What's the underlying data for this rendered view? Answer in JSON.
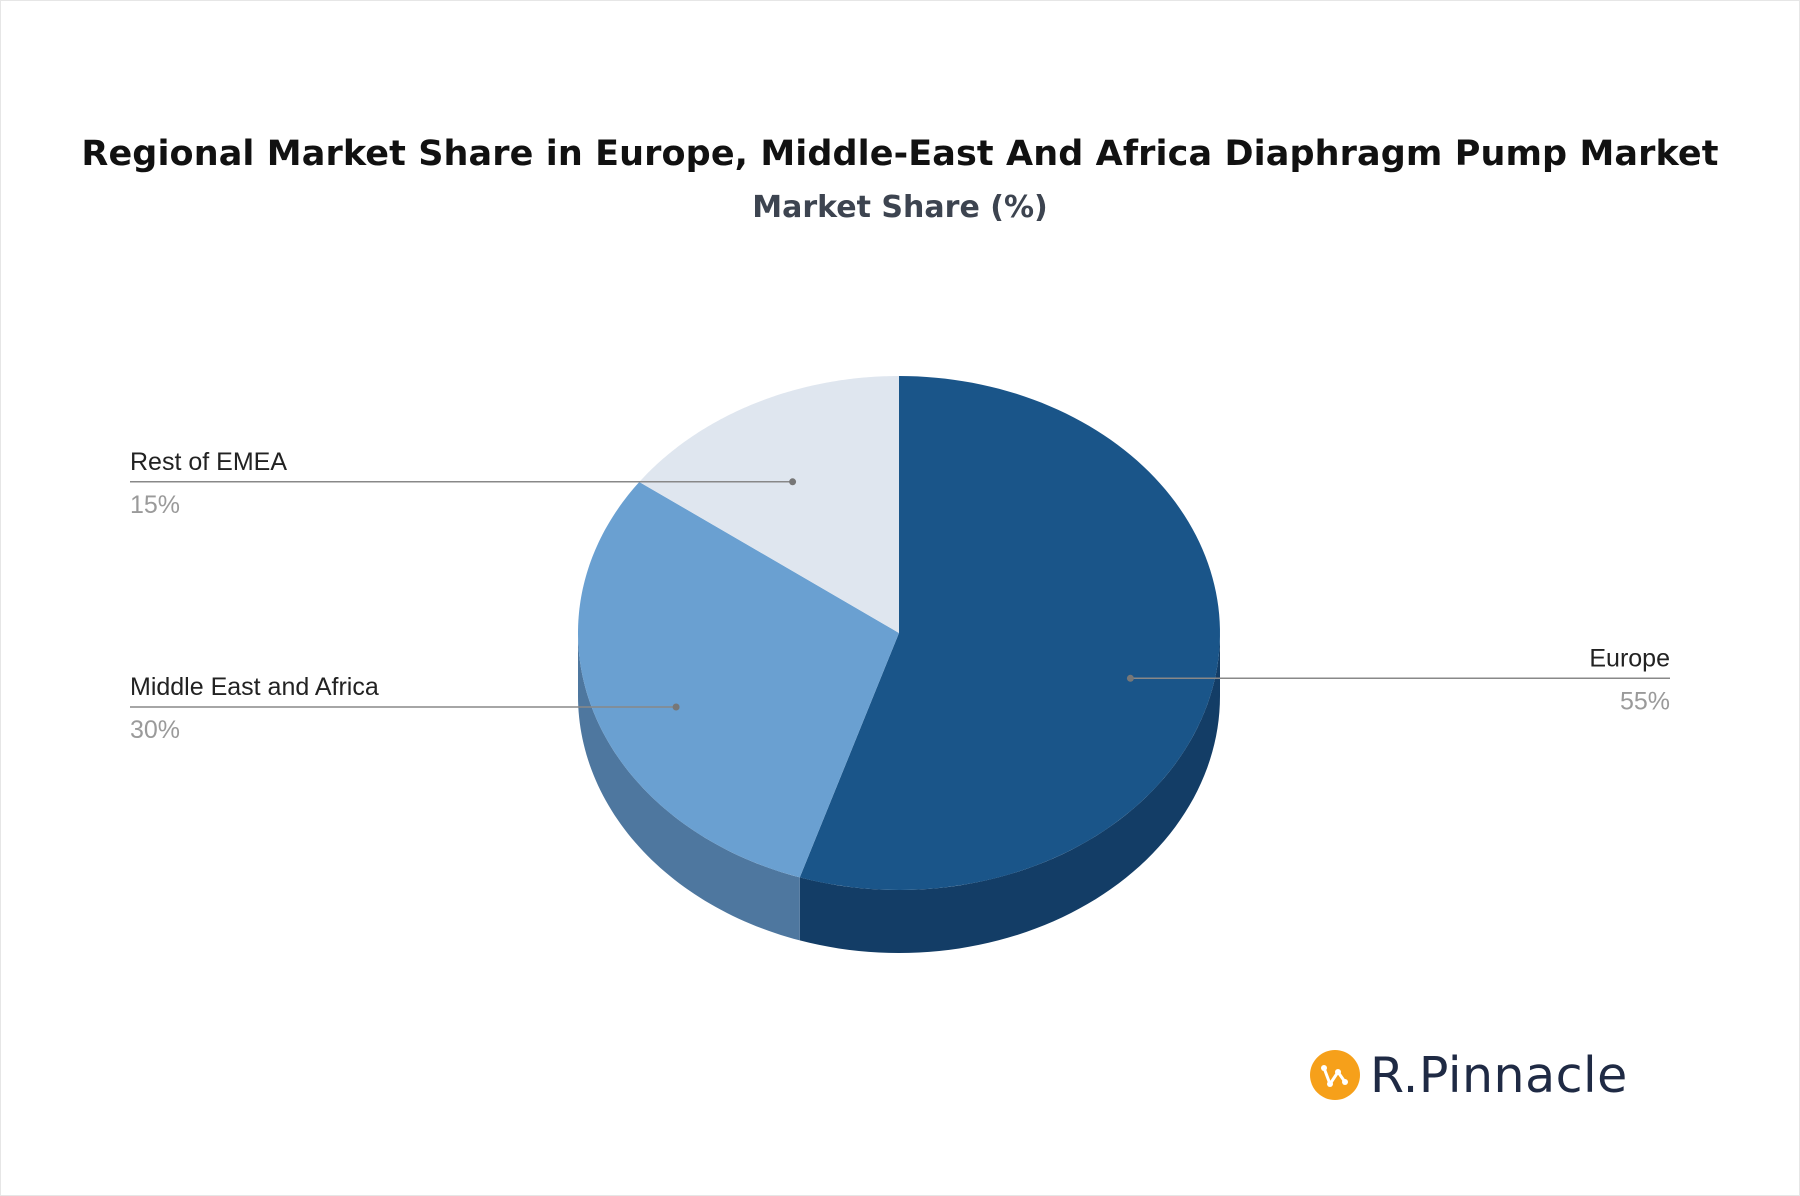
{
  "title": "Regional Market Share in Europe, Middle-East And Africa Diaphragm Pump Market",
  "subtitle": "Market Share (%)",
  "brand": {
    "name": "R.Pinnacle",
    "badge_color": "#f6a01a",
    "text_color": "#1f2a44"
  },
  "chart_data": {
    "type": "pie",
    "style": "3d",
    "unit": "%",
    "slices": [
      {
        "label": "Europe",
        "value": 55,
        "display": "55%",
        "color": "#1a5589",
        "side_color": "#133d66"
      },
      {
        "label": "Middle East and Africa",
        "value": 30,
        "display": "30%",
        "color": "#6aa0d1",
        "side_color": "#4e779f"
      },
      {
        "label": "Rest of EMEA",
        "value": 15,
        "display": "15%",
        "color": "#dfe6ef",
        "side_color": "#b6bdc7"
      }
    ]
  }
}
